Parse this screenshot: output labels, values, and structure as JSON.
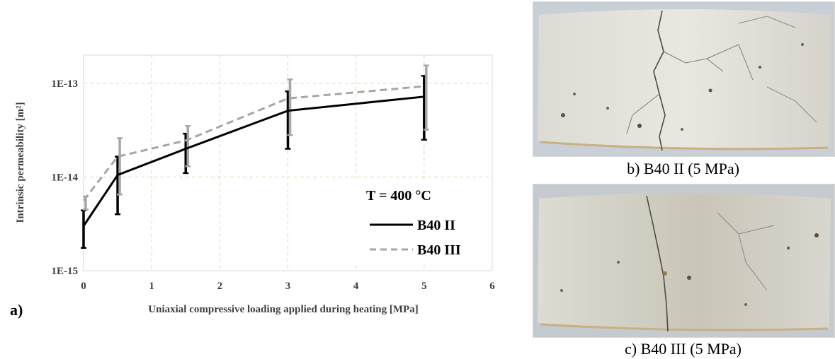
{
  "figure_a": {
    "panel_label": "a)",
    "chart_data": {
      "type": "line",
      "xlabel": "Uniaxial compressive loading applied during heating [MPa]",
      "ylabel": "Intrinsic permeability  [m²]",
      "y_scale": "log",
      "xlim": [
        0,
        6
      ],
      "ylim": [
        1e-15,
        2e-13
      ],
      "x_ticks": [
        "0",
        "1",
        "2",
        "3",
        "4",
        "5",
        "6"
      ],
      "y_ticks": [
        "1E-15",
        "1E-14",
        "1E-13"
      ],
      "grid": true,
      "legend_title": "T = 400 °C",
      "legend_position": "bottom-right",
      "series": [
        {
          "name": "B40 II",
          "color": "#000000",
          "dash": "solid",
          "x": [
            0,
            0.5,
            1.5,
            3,
            5
          ],
          "y": [
            3e-15,
            1.05e-14,
            2e-14,
            5.1e-14,
            7.2e-14
          ],
          "err_low": [
            1.75e-15,
            4e-15,
            1.1e-14,
            2e-14,
            2.5e-14
          ],
          "err_high": [
            4.4e-15,
            1.65e-14,
            2.9e-14,
            8.2e-14,
            1.2e-13
          ]
        },
        {
          "name": "B40 III",
          "color": "#a6a6a6",
          "dash": "dashed",
          "x": [
            0,
            0.5,
            1.5,
            3,
            5
          ],
          "y": [
            5.6e-15,
            1.65e-14,
            2.45e-14,
            6.9e-14,
            9.3e-14
          ],
          "err_low": [
            4.5e-15,
            6.5e-15,
            1.3e-14,
            2.8e-14,
            3.2e-14
          ],
          "err_high": [
            6.2e-15,
            2.6e-14,
            3.5e-14,
            1.1e-13,
            1.55e-13
          ]
        }
      ]
    }
  },
  "photos": [
    {
      "caption": "b) B40 II (5 MPa)"
    },
    {
      "caption": "c) B40 III (5 MPa)"
    }
  ]
}
